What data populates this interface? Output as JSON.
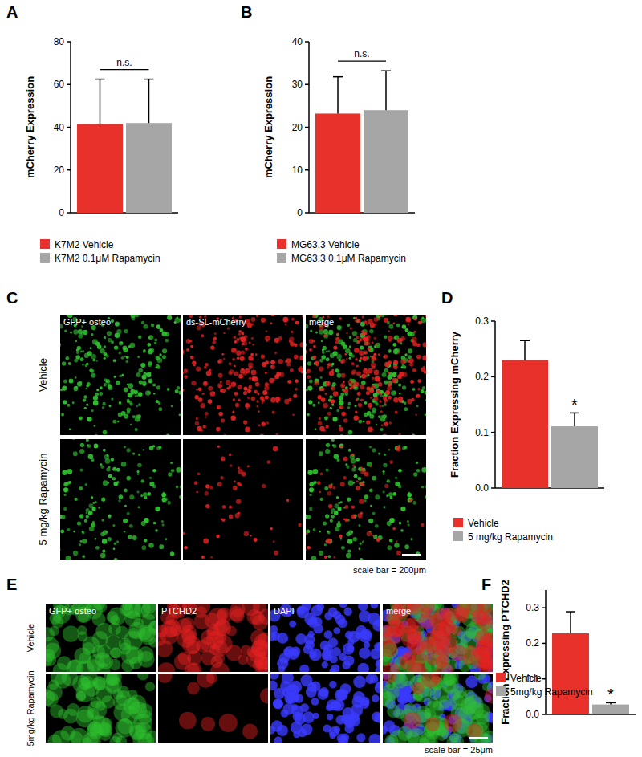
{
  "chart_data": [
    {
      "panel": "A",
      "type": "bar",
      "ylabel": "mCherry Expression",
      "categories": [
        "K7M2 Vehicle",
        "K7M2 0.1μM Rapamycin"
      ],
      "values": [
        41.5,
        42
      ],
      "errors": [
        21,
        20.5
      ],
      "colors": [
        "#e8312a",
        "#a6a6a6"
      ],
      "ylim": [
        0,
        80
      ],
      "yticks": [
        0,
        20,
        40,
        60,
        80
      ],
      "annotations": [
        "n.s."
      ],
      "legend": "bottom",
      "tick_labels": "y"
    },
    {
      "panel": "B",
      "type": "bar",
      "ylabel": "mCherry Expression",
      "categories": [
        "MG63.3 Vehicle",
        "MG63.3 0.1μM Rapamycin"
      ],
      "values": [
        23.2,
        24
      ],
      "errors": [
        8.6,
        9.2
      ],
      "colors": [
        "#e8312a",
        "#a6a6a6"
      ],
      "ylim": [
        0,
        40
      ],
      "yticks": [
        0,
        10,
        20,
        30,
        40
      ],
      "annotations": [
        "n.s."
      ],
      "legend": "bottom",
      "tick_labels": "y"
    },
    {
      "panel": "D",
      "type": "bar",
      "ylabel": "Fraction Expressing mCherry",
      "categories": [
        "Vehicle",
        "5 mg/kg Rapamycin"
      ],
      "values": [
        0.23,
        0.111
      ],
      "errors": [
        0.035,
        0.024
      ],
      "colors": [
        "#e8312a",
        "#a6a6a6"
      ],
      "ylim": [
        0,
        0.3
      ],
      "yticks": [
        {
          "value": 0,
          "label": "0.0"
        },
        0.1,
        0.2,
        0.3
      ],
      "annotations": [
        "*"
      ],
      "legend": "bottom",
      "tick_labels": "y"
    },
    {
      "panel": "F",
      "type": "bar",
      "ylabel": "Fraction Expressing PTCHD2",
      "categories": [
        "Vehicle",
        "5mg/kg Rapamycin"
      ],
      "values": [
        0.228,
        0.028
      ],
      "errors": [
        0.061,
        0.005
      ],
      "colors": [
        "#e8312a",
        "#a6a6a6"
      ],
      "ylim": [
        0,
        0.35
      ],
      "yticks": [
        {
          "value": 0,
          "label": "0.0"
        },
        0.1,
        0.2,
        0.3
      ],
      "annotations": [
        "*"
      ],
      "legend": "bottom",
      "tick_labels": "y"
    }
  ],
  "images": [
    {
      "panel": "C",
      "columns": [
        "GFP+ osteo",
        "ds-SL-mCherry",
        "merge"
      ],
      "rows": [
        "Vehicle",
        "5 mg/kg Rapamycin"
      ],
      "scale_bar": "scale bar = 200μm"
    },
    {
      "panel": "E",
      "columns": [
        "GFP+ osteo",
        "PTCHD2",
        "DAPI",
        "merge"
      ],
      "rows": [
        "Vehicle",
        "5mg/kg Rapamycin"
      ],
      "scale_bar": "scale bar = 25μm"
    }
  ]
}
